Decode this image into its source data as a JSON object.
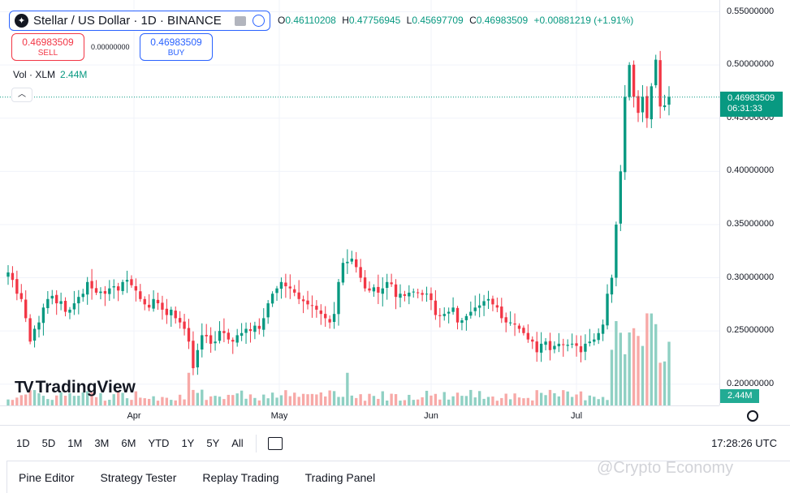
{
  "header": {
    "symbol_title": "Stellar / US Dollar · 1D · BINANCE",
    "logo_icon": "stellar-logo-icon",
    "ohlc": {
      "o_label": "O",
      "o": "0.46110208",
      "h_label": "H",
      "h": "0.47756945",
      "l_label": "L",
      "l": "0.45697709",
      "c_label": "C",
      "c": "0.46983509",
      "change": "+0.00881219 (+1.91%)"
    }
  },
  "trade": {
    "sell_price": "0.46983509",
    "sell_label": "SELL",
    "buy_price": "0.46983509",
    "buy_label": "BUY",
    "spread": "0.00000000"
  },
  "volume_legend": {
    "label": "Vol · XLM",
    "value": "2.44M"
  },
  "price_tag": {
    "price": "0.46983509",
    "countdown": "06:31:33"
  },
  "volume_tag": "2.44M",
  "brand": "TradingView",
  "bottom_toolbar": {
    "ranges": [
      "1D",
      "5D",
      "1M",
      "3M",
      "6M",
      "YTD",
      "1Y",
      "5Y",
      "All"
    ],
    "clock": "17:28:26 UTC"
  },
  "panel_tabs": [
    "Pine Editor",
    "Strategy Tester",
    "Replay Trading",
    "Trading Panel"
  ],
  "watermark": "@Crypto Economy",
  "colors": {
    "up": "#089981",
    "down": "#f23645",
    "vol_up": "#8fd0c3",
    "vol_down": "#f7a9a7",
    "accent": "#2962ff"
  },
  "chart_data": {
    "type": "candlestick",
    "ylim": [
      0.18,
      0.555
    ],
    "y_ticks": [
      "0.55000000",
      "0.50000000",
      "0.45000000",
      "0.40000000",
      "0.35000000",
      "0.30000000",
      "0.25000000",
      "0.20000000"
    ],
    "x_ticks": [
      "Apr",
      "May",
      "Jun",
      "Jul"
    ],
    "current_price": 0.46983509,
    "candles_description": "Daily candles, mid-March to late July",
    "close": [
      0.305,
      0.298,
      0.285,
      0.28,
      0.262,
      0.24,
      0.252,
      0.258,
      0.272,
      0.28,
      0.283,
      0.276,
      0.278,
      0.268,
      0.27,
      0.276,
      0.282,
      0.285,
      0.296,
      0.29,
      0.286,
      0.287,
      0.285,
      0.29,
      0.292,
      0.288,
      0.296,
      0.298,
      0.293,
      0.288,
      0.28,
      0.275,
      0.272,
      0.28,
      0.276,
      0.27,
      0.265,
      0.27,
      0.262,
      0.258,
      0.252,
      0.24,
      0.215,
      0.232,
      0.246,
      0.245,
      0.238,
      0.24,
      0.25,
      0.248,
      0.242,
      0.24,
      0.246,
      0.248,
      0.252,
      0.25,
      0.255,
      0.252,
      0.262,
      0.276,
      0.285,
      0.29,
      0.296,
      0.292,
      0.29,
      0.286,
      0.28,
      0.278,
      0.275,
      0.274,
      0.27,
      0.266,
      0.262,
      0.258,
      0.266,
      0.296,
      0.314,
      0.315,
      0.318,
      0.31,
      0.3,
      0.29,
      0.288,
      0.291,
      0.286,
      0.29,
      0.296,
      0.294,
      0.282,
      0.285,
      0.283,
      0.286,
      0.287,
      0.286,
      0.284,
      0.285,
      0.279,
      0.265,
      0.264,
      0.266,
      0.268,
      0.272,
      0.258,
      0.26,
      0.264,
      0.268,
      0.272,
      0.274,
      0.278,
      0.28,
      0.275,
      0.272,
      0.262,
      0.258,
      0.258,
      0.256,
      0.252,
      0.248,
      0.242,
      0.24,
      0.23,
      0.238,
      0.24,
      0.232,
      0.236,
      0.238,
      0.237,
      0.237,
      0.238,
      0.236,
      0.23,
      0.238,
      0.24,
      0.242,
      0.248,
      0.256,
      0.285,
      0.3,
      0.35,
      0.4,
      0.47,
      0.5,
      0.47,
      0.455,
      0.47,
      0.45,
      0.48,
      0.505,
      0.461,
      0.462,
      0.47
    ]
  }
}
